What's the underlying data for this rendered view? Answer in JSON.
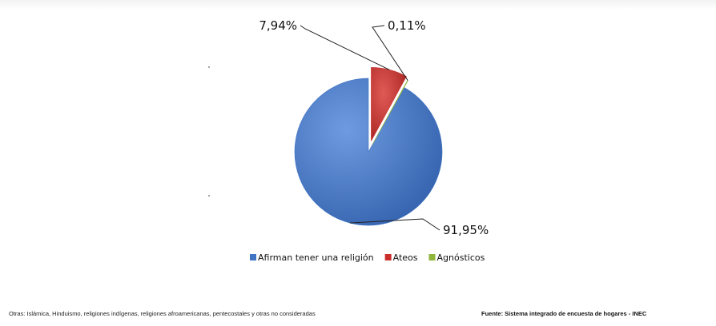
{
  "chart_data": {
    "type": "pie",
    "slices": [
      {
        "label": "Afirman tener una religión",
        "value": 91.95,
        "value_label": "91,95%",
        "color": "#3f74c4"
      },
      {
        "label": "Ateos",
        "value": 7.94,
        "value_label": "7,94%",
        "color": "#c9302c"
      },
      {
        "label": "Agnósticos",
        "value": 0.11,
        "value_label": "0,11%",
        "color": "#8fb43a"
      }
    ],
    "legend": {
      "position": "bottom",
      "items": [
        "Afirman tener una religión",
        "Ateos",
        "Agnósticos"
      ]
    }
  },
  "footer": {
    "left_note": "Otras: Islámica, Hinduismo, religiones indígenas, religiones afroamericanas, pentecostales y otras no consideradas",
    "source": "Fuente: Sistema integrado de encuesta de hogares -  INEC"
  }
}
